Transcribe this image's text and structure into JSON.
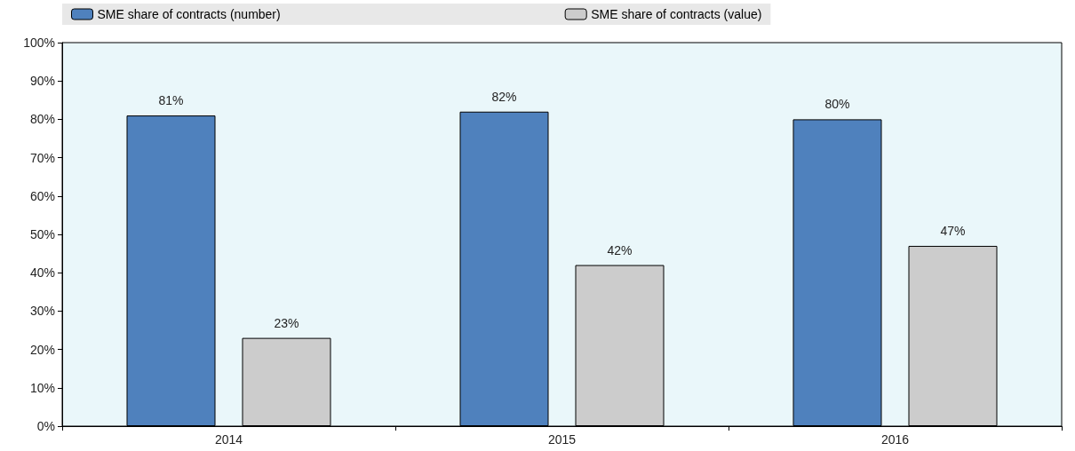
{
  "chart_data": {
    "type": "bar",
    "categories": [
      "2014",
      "2015",
      "2016"
    ],
    "series": [
      {
        "name": "SME share of contracts (number)",
        "color": "#4f81bd",
        "values": [
          81,
          82,
          80
        ],
        "value_labels": [
          "81%",
          "82%",
          "80%"
        ]
      },
      {
        "name": "SME share of contracts (value)",
        "color": "#cccccc",
        "values": [
          23,
          42,
          47
        ],
        "value_labels": [
          "23%",
          "42%",
          "47%"
        ]
      }
    ],
    "ylim": [
      0,
      100
    ],
    "yticks": [
      {
        "value": 0,
        "label": "0%"
      },
      {
        "value": 10,
        "label": "10%"
      },
      {
        "value": 20,
        "label": "20%"
      },
      {
        "value": 30,
        "label": "30%"
      },
      {
        "value": 40,
        "label": "40%"
      },
      {
        "value": 50,
        "label": "50%"
      },
      {
        "value": 60,
        "label": "60%"
      },
      {
        "value": 70,
        "label": "70%"
      },
      {
        "value": 80,
        "label": "80%"
      },
      {
        "value": 90,
        "label": "90%"
      },
      {
        "value": 100,
        "label": "100%"
      }
    ],
    "grid": false,
    "legend": "top"
  }
}
